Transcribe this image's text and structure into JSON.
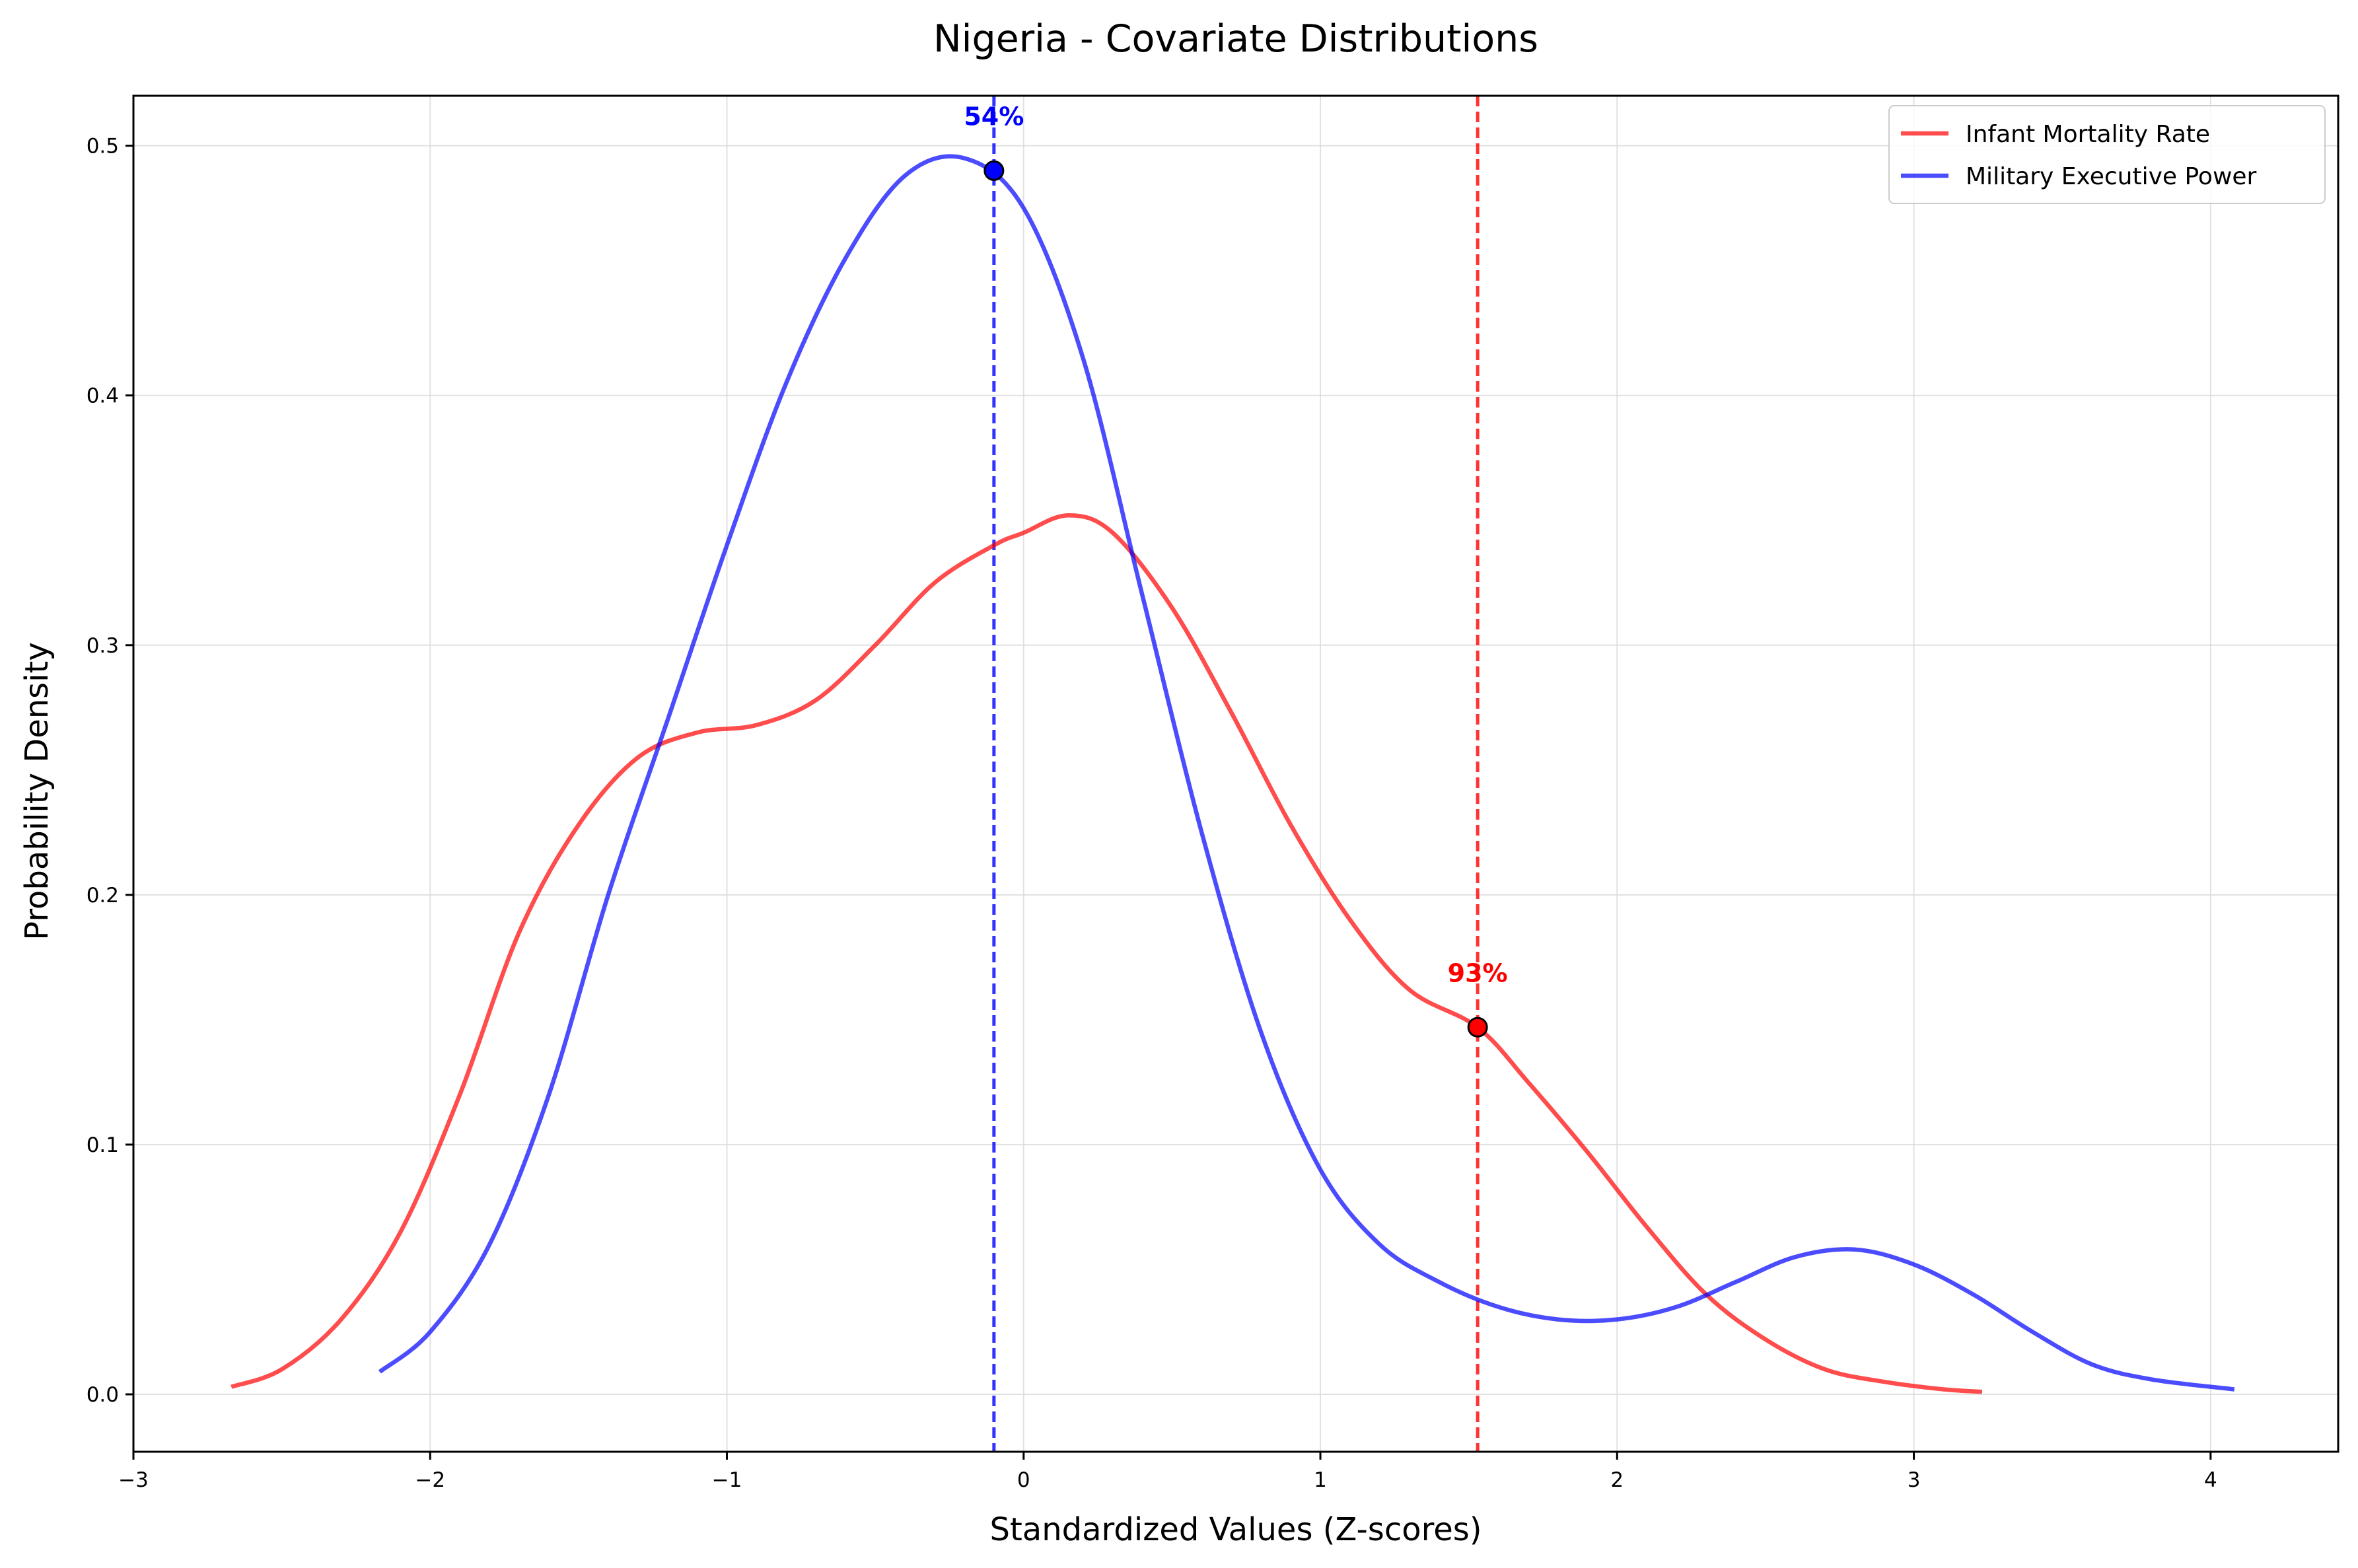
{
  "chart_data": {
    "type": "line",
    "title": "Nigeria - Covariate Distributions",
    "xlabel": "Standardized Values (Z-scores)",
    "ylabel": "Probability Density",
    "xlim": [
      -3,
      4.43
    ],
    "ylim": [
      -0.023,
      0.52
    ],
    "xticks": [
      -3,
      -2,
      -1,
      0,
      1,
      2,
      3,
      4
    ],
    "xtick_labels": [
      "−3",
      "−2",
      "−1",
      "0",
      "1",
      "2",
      "3",
      "4"
    ],
    "yticks": [
      0.0,
      0.1,
      0.2,
      0.3,
      0.4,
      0.5
    ],
    "ytick_labels": [
      "0.0",
      "0.1",
      "0.2",
      "0.3",
      "0.4",
      "0.5"
    ],
    "grid": true,
    "legend_position": "top-right",
    "series": [
      {
        "name": "Infant Mortality Rate",
        "color": "#ff0000",
        "x": [
          -2.67,
          -2.5,
          -2.3,
          -2.1,
          -1.9,
          -1.7,
          -1.5,
          -1.3,
          -1.1,
          -0.9,
          -0.7,
          -0.5,
          -0.3,
          -0.1,
          0.0,
          0.15,
          0.3,
          0.5,
          0.7,
          0.9,
          1.1,
          1.3,
          1.53,
          1.7,
          1.9,
          2.1,
          2.3,
          2.5,
          2.7,
          2.9,
          3.1,
          3.23
        ],
        "y": [
          0.003,
          0.01,
          0.03,
          0.065,
          0.12,
          0.185,
          0.228,
          0.255,
          0.265,
          0.268,
          0.278,
          0.3,
          0.325,
          0.34,
          0.345,
          0.352,
          0.345,
          0.315,
          0.273,
          0.228,
          0.19,
          0.162,
          0.147,
          0.125,
          0.097,
          0.067,
          0.04,
          0.022,
          0.01,
          0.005,
          0.002,
          0.001
        ]
      },
      {
        "name": "Military Executive Power",
        "color": "#0000ff",
        "x": [
          -2.17,
          -2.0,
          -1.8,
          -1.6,
          -1.4,
          -1.2,
          -1.0,
          -0.8,
          -0.6,
          -0.4,
          -0.2,
          0.0,
          0.2,
          0.4,
          0.6,
          0.8,
          1.0,
          1.2,
          1.4,
          1.6,
          1.8,
          2.0,
          2.2,
          2.4,
          2.6,
          2.8,
          3.0,
          3.2,
          3.4,
          3.6,
          3.8,
          4.08
        ],
        "y": [
          0.009,
          0.025,
          0.06,
          0.12,
          0.2,
          0.27,
          0.34,
          0.405,
          0.455,
          0.488,
          0.495,
          0.475,
          0.415,
          0.32,
          0.225,
          0.145,
          0.09,
          0.06,
          0.045,
          0.035,
          0.03,
          0.03,
          0.035,
          0.045,
          0.055,
          0.058,
          0.052,
          0.04,
          0.025,
          0.012,
          0.006,
          0.002
        ]
      }
    ],
    "vlines": [
      {
        "x": -0.1,
        "color": "#0000ff"
      },
      {
        "x": 1.53,
        "color": "#ff0000"
      }
    ],
    "markers": [
      {
        "x": -0.1,
        "y": 0.49,
        "color": "#0000ff",
        "label": "54%"
      },
      {
        "x": 1.53,
        "y": 0.147,
        "color": "#ff0000",
        "label": "93%"
      }
    ]
  }
}
